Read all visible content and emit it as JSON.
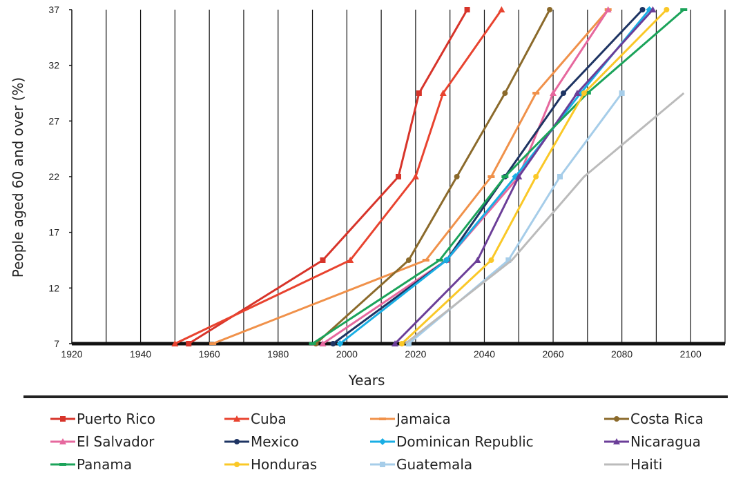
{
  "chart_data": {
    "type": "line",
    "xlabel": "Years",
    "ylabel": "People aged 60 and over (%)",
    "xlim": [
      1920,
      2110
    ],
    "ylim": [
      7,
      37
    ],
    "x_ticks": [
      1920,
      1940,
      1960,
      1980,
      2000,
      2020,
      2040,
      2060,
      2080,
      2100
    ],
    "y_ticks": [
      7,
      12,
      17,
      22,
      27,
      32,
      37
    ],
    "grid": "vertical",
    "legend_position": "bottom",
    "series": [
      {
        "name": "Puerto Rico",
        "color": "#d7342a",
        "marker": "square",
        "points": [
          [
            1954,
            7
          ],
          [
            1993,
            14.5
          ],
          [
            2015,
            22
          ],
          [
            2021,
            29.5
          ],
          [
            2035,
            37
          ]
        ]
      },
      {
        "name": "Cuba",
        "color": "#e8432f",
        "marker": "triangle",
        "points": [
          [
            1950,
            7
          ],
          [
            2001,
            14.5
          ],
          [
            2020,
            22
          ],
          [
            2028,
            29.5
          ],
          [
            2045,
            37
          ]
        ]
      },
      {
        "name": "Jamaica",
        "color": "#f0914a",
        "marker": "dash",
        "points": [
          [
            1961,
            7
          ],
          [
            2023,
            14.5
          ],
          [
            2042,
            22
          ],
          [
            2055,
            29.5
          ],
          [
            2076,
            37
          ]
        ]
      },
      {
        "name": "Costa Rica",
        "color": "#8b6a2b",
        "marker": "circle",
        "points": [
          [
            1991,
            7
          ],
          [
            2018,
            14.5
          ],
          [
            2032,
            22
          ],
          [
            2046,
            29.5
          ],
          [
            2059,
            37
          ]
        ]
      },
      {
        "name": "El Salvador",
        "color": "#e6689e",
        "marker": "triangle",
        "points": [
          [
            1993,
            7
          ],
          [
            2029,
            14.5
          ],
          [
            2050,
            22
          ],
          [
            2060,
            29.5
          ],
          [
            2076,
            37
          ]
        ]
      },
      {
        "name": "Mexico",
        "color": "#1e3463",
        "marker": "circle",
        "points": [
          [
            1996,
            7
          ],
          [
            2029,
            14.5
          ],
          [
            2046,
            22
          ],
          [
            2063,
            29.5
          ],
          [
            2086,
            37
          ]
        ]
      },
      {
        "name": "Dominican Republic",
        "color": "#19aee4",
        "marker": "diamond",
        "points": [
          [
            1998,
            7
          ],
          [
            2029,
            14.5
          ],
          [
            2049,
            22
          ],
          [
            2068,
            29.5
          ],
          [
            2088,
            37
          ]
        ]
      },
      {
        "name": "Nicaragua",
        "color": "#6b3e98",
        "marker": "triangle",
        "points": [
          [
            2014,
            7
          ],
          [
            2038,
            14.5
          ],
          [
            2050,
            22
          ],
          [
            2067,
            29.5
          ],
          [
            2089,
            37
          ]
        ]
      },
      {
        "name": "Panama",
        "color": "#1ba35a",
        "marker": "dash",
        "points": [
          [
            1990,
            7
          ],
          [
            2027,
            14.5
          ],
          [
            2046,
            22
          ],
          [
            2070,
            29.5
          ],
          [
            2098,
            37
          ]
        ]
      },
      {
        "name": "Honduras",
        "color": "#fac827",
        "marker": "circle",
        "points": [
          [
            2016,
            7
          ],
          [
            2042,
            14.5
          ],
          [
            2055,
            22
          ],
          [
            2069,
            29.5
          ],
          [
            2093,
            37
          ]
        ]
      },
      {
        "name": "Guatemala",
        "color": "#a6cde9",
        "marker": "square",
        "points": [
          [
            2018,
            7
          ],
          [
            2047,
            14.5
          ],
          [
            2062,
            22
          ],
          [
            2080,
            29.5
          ]
        ]
      },
      {
        "name": "Haiti",
        "color": "#bbbbbb",
        "marker": "none",
        "points": [
          [
            2017,
            7
          ],
          [
            2048,
            14.5
          ],
          [
            2069,
            22
          ],
          [
            2098,
            29.5
          ]
        ]
      }
    ]
  }
}
